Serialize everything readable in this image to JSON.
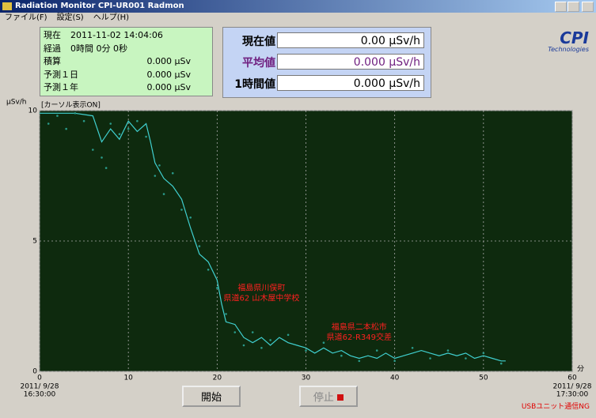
{
  "window": {
    "title": "Radiation Monitor CPI-UR001 Radmon"
  },
  "menu": [
    "ファイル(F)",
    "設定(S)",
    "ヘルプ(H)"
  ],
  "info": [
    {
      "label": "現在",
      "value": "2011-11-02 14:04:06"
    },
    {
      "label": "経過",
      "value": "0時間 0分 0秒"
    },
    {
      "label": "積算",
      "value": "0.000 μSv"
    },
    {
      "label": "予測１日",
      "value": "0.000 μSv"
    },
    {
      "label": "予測１年",
      "value": "0.000 μSv"
    }
  ],
  "readings": [
    {
      "label": "現在値",
      "value": "0.00  μSv/h"
    },
    {
      "label": "平均値",
      "value": "0.000 μSv/h"
    },
    {
      "label": "1時間値",
      "value": "0.000 μSv/h"
    }
  ],
  "logo": {
    "name": "CPI",
    "sub": "Technologies"
  },
  "chart_data": {
    "type": "line",
    "ylabel": "μSv/h",
    "xlabel": "分",
    "cursor_note": "[カーソル表示ON]",
    "xlim": [
      0,
      60
    ],
    "ylim": [
      0,
      10
    ],
    "xticks": [
      0,
      10,
      20,
      30,
      40,
      50,
      60
    ],
    "yticks": [
      0,
      5,
      10
    ],
    "grid": true,
    "start_date": "2011/ 9/28",
    "start_time": "16:30:00",
    "end_date": "2011/ 9/28",
    "end_time": "17:30:00",
    "series": [
      {
        "color": "#40d0d0",
        "x": [
          0,
          2,
          4,
          6,
          7,
          8,
          9,
          10,
          11,
          12,
          12.5,
          13,
          14,
          15,
          16,
          17,
          18,
          19,
          20,
          20.5,
          21,
          22,
          23,
          24,
          25,
          26,
          27,
          28,
          29,
          30,
          31,
          32,
          33,
          34,
          35,
          36,
          37,
          38,
          39,
          40,
          41,
          42,
          43,
          44,
          45,
          46,
          47,
          48,
          49,
          50,
          51,
          52,
          52.5
        ],
        "values": [
          9.9,
          9.9,
          9.9,
          9.8,
          8.8,
          9.3,
          8.9,
          9.6,
          9.2,
          9.5,
          8.8,
          8,
          7.4,
          7.1,
          6.6,
          5.5,
          4.5,
          4.2,
          3.5,
          2.6,
          1.9,
          1.8,
          1.3,
          1.1,
          1.3,
          1.0,
          1.3,
          1.1,
          1.0,
          0.9,
          0.7,
          0.9,
          0.7,
          0.8,
          0.6,
          0.5,
          0.6,
          0.5,
          0.7,
          0.5,
          0.6,
          0.7,
          0.8,
          0.7,
          0.6,
          0.7,
          0.6,
          0.7,
          0.5,
          0.6,
          0.5,
          0.4,
          0.4
        ]
      },
      {
        "type": "scatter",
        "color": "#2a9a8a",
        "x": [
          1,
          2,
          3,
          4,
          5,
          6,
          7,
          7.5,
          8,
          9,
          10,
          11,
          12,
          13,
          13.5,
          14,
          15,
          16,
          17,
          18,
          19,
          20,
          21,
          22,
          23,
          24,
          25,
          26,
          28,
          30,
          32,
          34,
          36,
          38,
          40,
          42,
          44,
          46,
          48,
          50,
          52
        ],
        "values": [
          9.5,
          9.8,
          9.3,
          9.9,
          9.6,
          8.5,
          8.2,
          7.8,
          9.5,
          9.1,
          9.3,
          9.6,
          9.0,
          7.5,
          7.9,
          6.8,
          7.6,
          6.2,
          5.9,
          4.8,
          3.9,
          3.2,
          2.2,
          1.5,
          1.0,
          1.5,
          0.9,
          1.2,
          1.4,
          0.8,
          1.1,
          0.6,
          0.4,
          0.8,
          0.4,
          0.9,
          0.5,
          0.8,
          0.5,
          0.7,
          0.3
        ]
      }
    ],
    "annotations": [
      {
        "lines": [
          "福島県川俣町",
          "県道62 山木屋中学校"
        ],
        "x": 25,
        "y": 3.2
      },
      {
        "lines": [
          "福島県二本松市",
          "県道62-R349交差"
        ],
        "x": 36,
        "y": 1.7
      }
    ]
  },
  "buttons": {
    "start": "開始",
    "stop": "停止"
  },
  "status": "USBユニット通信NG"
}
